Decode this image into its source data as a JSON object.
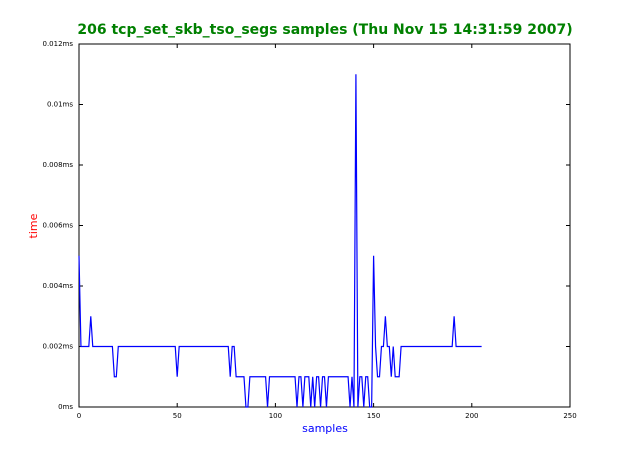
{
  "chart_data": {
    "type": "line",
    "title": "206 tcp_set_skb_tso_segs samples (Thu Nov 15 14:31:59 2007)",
    "xlabel": "samples",
    "ylabel": "time",
    "xlim": [
      0,
      250
    ],
    "xticks": [
      0,
      50,
      100,
      150,
      200,
      250
    ],
    "ylim": [
      0,
      0.012
    ],
    "yticks": [
      {
        "value": 0,
        "label": "0ms"
      },
      {
        "value": 0.002,
        "label": "0.002ms"
      },
      {
        "value": 0.004,
        "label": "0.004ms"
      },
      {
        "value": 0.006,
        "label": "0.006ms"
      },
      {
        "value": 0.008,
        "label": "0.008ms"
      },
      {
        "value": 0.01,
        "label": "0.01ms"
      },
      {
        "value": 0.012,
        "label": "0.012ms"
      }
    ],
    "grid": false,
    "series": [
      {
        "color": "#0000ff",
        "values": [
          0.005,
          0.002,
          0.002,
          0.002,
          0.002,
          0.002,
          0.003,
          0.002,
          0.002,
          0.002,
          0.002,
          0.002,
          0.002,
          0.002,
          0.002,
          0.002,
          0.002,
          0.002,
          0.001,
          0.001,
          0.002,
          0.002,
          0.002,
          0.002,
          0.002,
          0.002,
          0.002,
          0.002,
          0.002,
          0.002,
          0.002,
          0.002,
          0.002,
          0.002,
          0.002,
          0.002,
          0.002,
          0.002,
          0.002,
          0.002,
          0.002,
          0.002,
          0.002,
          0.002,
          0.002,
          0.002,
          0.002,
          0.002,
          0.002,
          0.002,
          0.001,
          0.002,
          0.002,
          0.002,
          0.002,
          0.002,
          0.002,
          0.002,
          0.002,
          0.002,
          0.002,
          0.002,
          0.002,
          0.002,
          0.002,
          0.002,
          0.002,
          0.002,
          0.002,
          0.002,
          0.002,
          0.002,
          0.002,
          0.002,
          0.002,
          0.002,
          0.002,
          0.001,
          0.002,
          0.002,
          0.001,
          0.001,
          0.001,
          0.001,
          0.001,
          0,
          0,
          0.001,
          0.001,
          0.001,
          0.001,
          0.001,
          0.001,
          0.001,
          0.001,
          0.001,
          0,
          0.001,
          0.001,
          0.001,
          0.001,
          0.001,
          0.001,
          0.001,
          0.001,
          0.001,
          0.001,
          0.001,
          0.001,
          0.001,
          0.001,
          0,
          0.001,
          0.001,
          0,
          0.001,
          0.001,
          0.001,
          0,
          0.001,
          0,
          0.001,
          0.001,
          0,
          0.001,
          0.001,
          0,
          0.001,
          0.001,
          0.001,
          0.001,
          0.001,
          0.001,
          0.001,
          0.001,
          0.001,
          0.001,
          0.001,
          0,
          0.001,
          0,
          0.011,
          0,
          0.001,
          0.001,
          0,
          0.001,
          0.001,
          0,
          0,
          0.005,
          0.002,
          0.001,
          0.001,
          0.002,
          0.002,
          0.003,
          0.002,
          0.002,
          0.001,
          0.002,
          0.001,
          0.001,
          0.001,
          0.002,
          0.002,
          0.002,
          0.002,
          0.002,
          0.002,
          0.002,
          0.002,
          0.002,
          0.002,
          0.002,
          0.002,
          0.002,
          0.002,
          0.002,
          0.002,
          0.002,
          0.002,
          0.002,
          0.002,
          0.002,
          0.002,
          0.002,
          0.002,
          0.002,
          0.002,
          0.002,
          0.003,
          0.002,
          0.002,
          0.002,
          0.002,
          0.002,
          0.002,
          0.002,
          0.002,
          0.002,
          0.002,
          0.002,
          0.002,
          0.002,
          0.002
        ]
      }
    ]
  }
}
